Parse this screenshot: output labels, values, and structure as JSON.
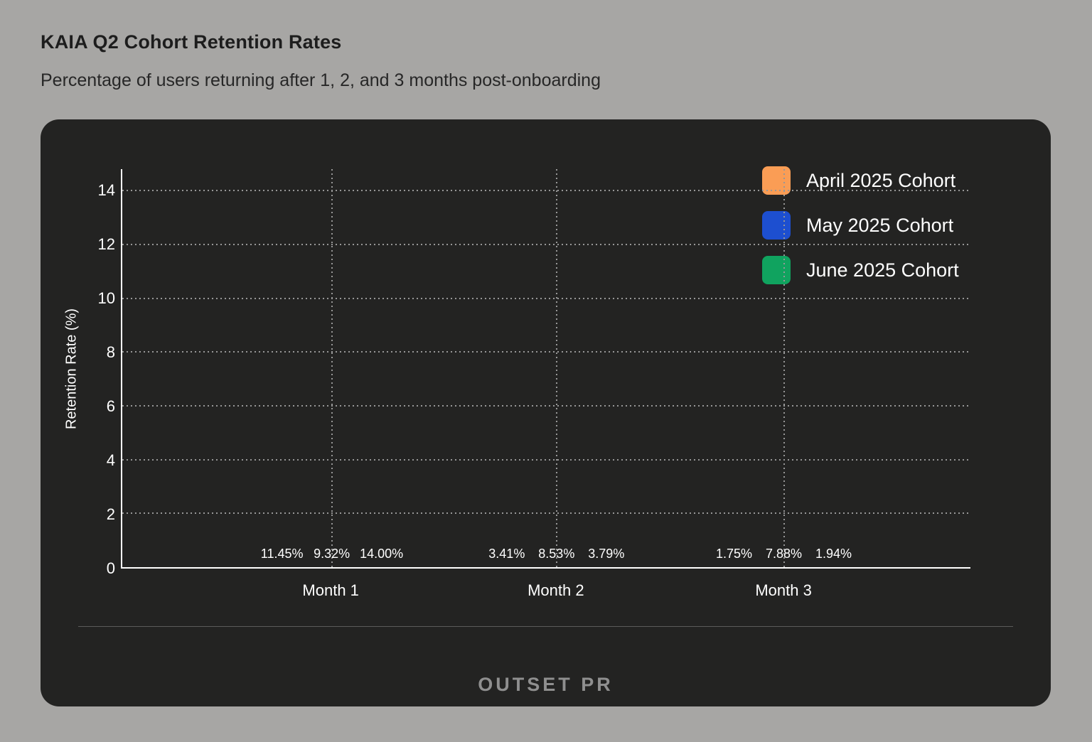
{
  "page": {
    "title": "KAIA Q2 Cohort Retention Rates",
    "subtitle": "Percentage of users returning after 1, 2, and 3 months post-onboarding",
    "watermark": "OUTSET PR"
  },
  "colors": {
    "page_bg": "#a7a6a4",
    "card_bg": "#232322",
    "axis": "#ffffff",
    "gridline": "#979797",
    "april": "#fa9d55",
    "may": "#1d4fd0",
    "june": "#10a35f"
  },
  "chart_data": {
    "type": "bar",
    "title": "KAIA Q2 Cohort Retention Rates",
    "subtitle": "Percentage of users returning after 1, 2, and 3 months post-onboarding",
    "categories": [
      "Month 1",
      "Month 2",
      "Month 3"
    ],
    "series": [
      {
        "name": "April 2025 Cohort",
        "color": "#fa9d55",
        "values": [
          11.45,
          3.41,
          1.75
        ],
        "labels": [
          "11.45%",
          "3.41%",
          "1.75%"
        ]
      },
      {
        "name": "May 2025 Cohort",
        "color": "#1d4fd0",
        "values": [
          9.32,
          8.53,
          7.88
        ],
        "labels": [
          "9.32%",
          "8.53%",
          "7.88%"
        ]
      },
      {
        "name": "June 2025 Cohort",
        "color": "#10a35f",
        "values": [
          14.0,
          3.79,
          1.94
        ],
        "labels": [
          "14.00%",
          "3.79%",
          "1.94%"
        ]
      }
    ],
    "xlabel": "",
    "ylabel": "Retention Rate (%)",
    "yticks": [
      0,
      2,
      4,
      6,
      8,
      10,
      12,
      14
    ],
    "ylim": [
      0,
      14.8
    ],
    "grid": true,
    "legend_position": "top-right"
  }
}
